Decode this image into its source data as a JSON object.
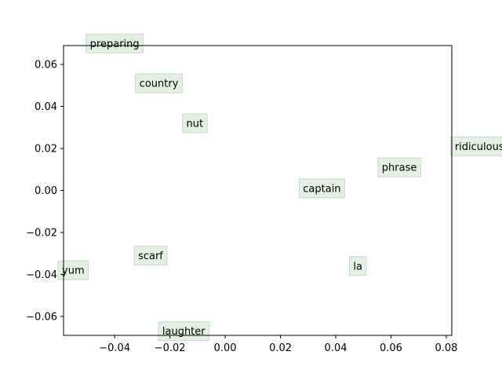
{
  "chart_data": {
    "type": "scatter",
    "title": "",
    "xlabel": "",
    "ylabel": "",
    "xlim": [
      -0.0585,
      0.082
    ],
    "ylim": [
      -0.069,
      0.069
    ],
    "grid": false,
    "xticks": [
      -0.04,
      -0.02,
      0.0,
      0.02,
      0.04,
      0.06,
      0.08
    ],
    "yticks": [
      -0.06,
      -0.04,
      -0.02,
      0.0,
      0.02,
      0.04,
      0.06
    ],
    "xtick_labels": [
      "−0.04",
      "−0.02",
      "0.00",
      "0.02",
      "0.04",
      "0.06",
      "0.08"
    ],
    "ytick_labels": [
      "−0.06",
      "−0.04",
      "−0.02",
      "0.00",
      "0.02",
      "0.04",
      "0.06"
    ],
    "label_box_color": "#e3f0e3",
    "label_box_edge": "#c8dcc8",
    "points": [
      {
        "label": "preparing",
        "x": -0.04,
        "y": 0.07
      },
      {
        "label": "country",
        "x": -0.024,
        "y": 0.051
      },
      {
        "label": "nut",
        "x": -0.011,
        "y": 0.032
      },
      {
        "label": "ridiculous",
        "x": 0.092,
        "y": 0.021
      },
      {
        "label": "phrase",
        "x": 0.063,
        "y": 0.011
      },
      {
        "label": "captain",
        "x": 0.035,
        "y": 0.001
      },
      {
        "label": "scarf",
        "x": -0.027,
        "y": -0.031
      },
      {
        "label": "la",
        "x": 0.048,
        "y": -0.036
      },
      {
        "label": "yum",
        "x": -0.055,
        "y": -0.038
      },
      {
        "label": "laughter",
        "x": -0.015,
        "y": -0.067
      }
    ]
  }
}
